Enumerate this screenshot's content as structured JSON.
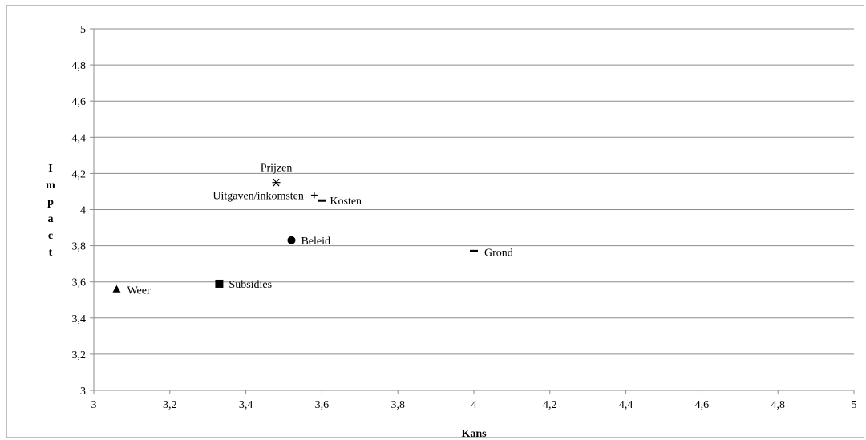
{
  "chart_data": {
    "type": "scatter",
    "title": "",
    "xlabel": "Kans",
    "ylabel": "Impact",
    "xlim": [
      3,
      5
    ],
    "ylim": [
      3,
      5
    ],
    "x_ticks": [
      "3",
      "3,2",
      "3,4",
      "3,6",
      "3,8",
      "4",
      "4,2",
      "4,4",
      "4,6",
      "4,8",
      "5"
    ],
    "y_ticks": [
      "3",
      "3,2",
      "3,4",
      "3,6",
      "3,8",
      "4",
      "4,2",
      "4,4",
      "4,6",
      "4,8",
      "5"
    ],
    "grid": "horizontal",
    "legend": "none",
    "points": [
      {
        "label": "Weer",
        "x": 3.06,
        "y": 3.56,
        "marker": "triangle"
      },
      {
        "label": "Subsidies",
        "x": 3.33,
        "y": 3.59,
        "marker": "square"
      },
      {
        "label": "Prijzen",
        "x": 3.48,
        "y": 4.15,
        "marker": "star"
      },
      {
        "label": "Uitgaven/inkomsten",
        "x": 3.58,
        "y": 4.08,
        "marker": "plus"
      },
      {
        "label": "Kosten",
        "x": 3.6,
        "y": 4.05,
        "marker": "dash"
      },
      {
        "label": "Beleid",
        "x": 3.52,
        "y": 3.83,
        "marker": "circle"
      },
      {
        "label": "Grond",
        "x": 4.0,
        "y": 3.77,
        "marker": "dash"
      }
    ]
  }
}
